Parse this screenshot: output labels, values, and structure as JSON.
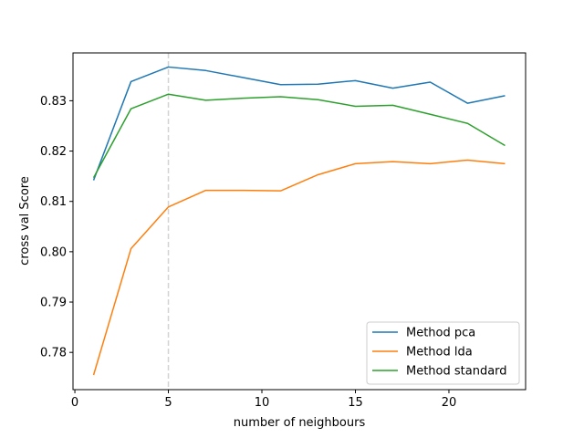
{
  "chart_data": {
    "type": "line",
    "title": "",
    "xlabel": "number of neighbours",
    "ylabel": "cross val Score",
    "xlim": [
      -0.1,
      24.1
    ],
    "ylim": [
      0.7726,
      0.8395
    ],
    "xticks": [
      0,
      5,
      10,
      15,
      20
    ],
    "yticks": [
      0.78,
      0.79,
      0.8,
      0.81,
      0.82,
      0.83
    ],
    "ytick_labels": [
      "0.78",
      "0.79",
      "0.80",
      "0.81",
      "0.82",
      "0.83"
    ],
    "grid": false,
    "legend_position": "lower-right",
    "reference_line": {
      "x": 5,
      "style": "dashed",
      "color": "#d3d3d3"
    },
    "x": [
      1,
      3,
      5,
      7,
      9,
      11,
      13,
      15,
      17,
      19,
      21,
      23
    ],
    "series": [
      {
        "name": "Method pca",
        "color": "#1f77b4",
        "values": [
          0.8142,
          0.8338,
          0.8367,
          0.836,
          0.8346,
          0.8332,
          0.8333,
          0.834,
          0.8325,
          0.8337,
          0.8295,
          0.831
        ]
      },
      {
        "name": "Method lda",
        "color": "#ff7f0e",
        "values": [
          0.7755,
          0.8006,
          0.8089,
          0.8122,
          0.8122,
          0.8121,
          0.8153,
          0.8175,
          0.8179,
          0.8175,
          0.8182,
          0.8175
        ]
      },
      {
        "name": "Method standard",
        "color": "#2ca02c",
        "values": [
          0.8147,
          0.8284,
          0.8313,
          0.8301,
          0.8305,
          0.8308,
          0.8302,
          0.8289,
          0.8291,
          0.8273,
          0.8255,
          0.8211
        ]
      }
    ]
  }
}
